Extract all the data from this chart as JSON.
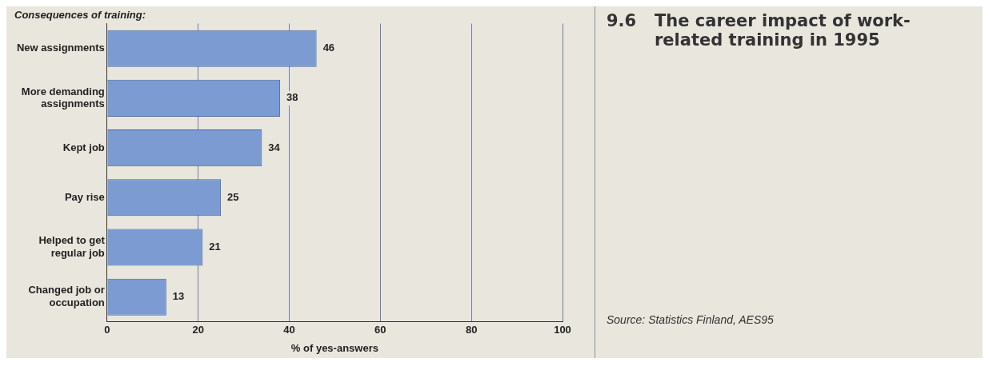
{
  "chart_data": {
    "type": "bar",
    "orientation": "horizontal",
    "title": "9.6 The career impact of work-related training in 1995",
    "ylabel": "Consequences of training:",
    "xlabel": "% of yes-answers",
    "categories": [
      "New assignments",
      "More demanding assignments",
      "Kept job",
      "Pay rise",
      "Helped to get regular job",
      "Changed job or occupation"
    ],
    "values": [
      46,
      38,
      34,
      25,
      21,
      13
    ],
    "color": "#7b9bd2",
    "data_labels": true,
    "xlim": [
      0,
      100
    ],
    "xticks": [
      0,
      20,
      40,
      60,
      80,
      100
    ],
    "grid": "x",
    "legend": false,
    "annotations": [
      "Source: Statistics Finland, AES95"
    ]
  }
}
